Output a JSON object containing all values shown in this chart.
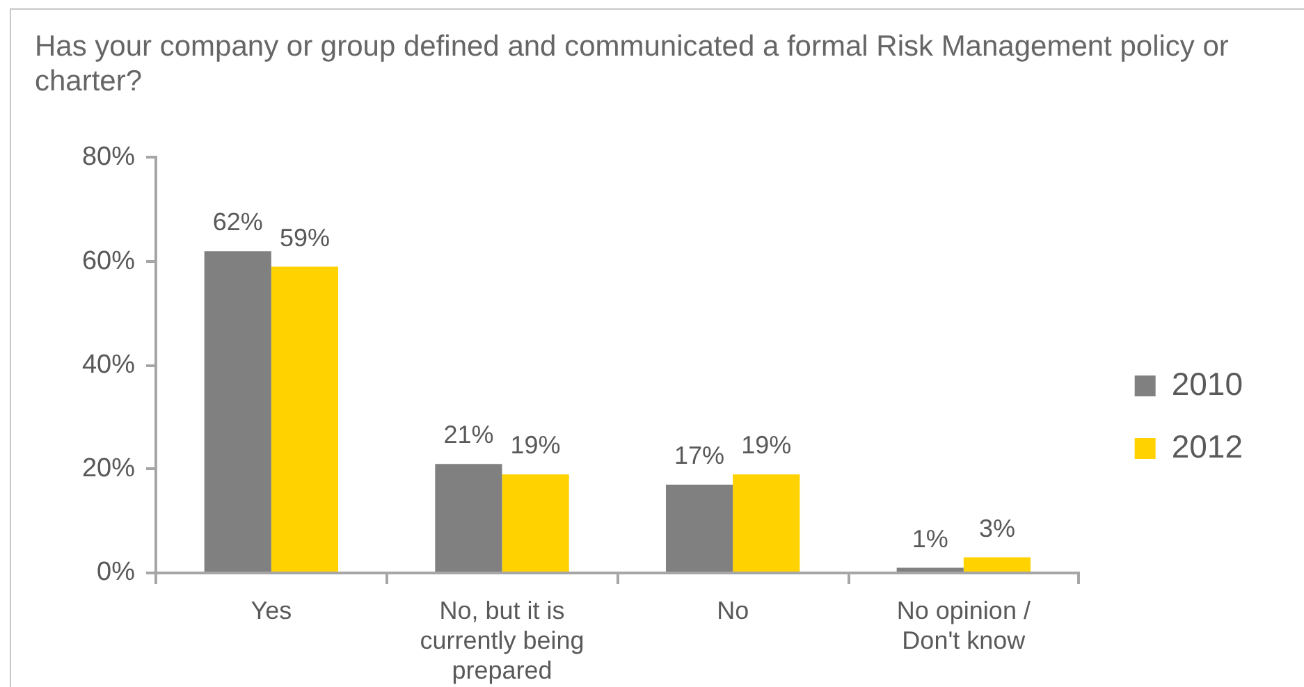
{
  "chart_data": {
    "type": "bar",
    "title": "Has your company or group defined and communicated a formal Risk Management policy or charter?",
    "categories": [
      "Yes",
      "No, but it is currently being prepared",
      "No",
      "No opinion / Don't know"
    ],
    "series": [
      {
        "name": "2010",
        "color": "#808080",
        "values": [
          62,
          21,
          17,
          1
        ],
        "value_labels": [
          "62%",
          "21%",
          "17%",
          "1%"
        ]
      },
      {
        "name": "2012",
        "color": "#ffd200",
        "values": [
          59,
          19,
          19,
          3
        ],
        "value_labels": [
          "59%",
          "19%",
          "19%",
          "3%"
        ]
      }
    ],
    "ylim": [
      0,
      80
    ],
    "yticks": [
      {
        "value": 0,
        "label": "0%"
      },
      {
        "value": 20,
        "label": "20%"
      },
      {
        "value": 40,
        "label": "40%"
      },
      {
        "value": 60,
        "label": "60%"
      },
      {
        "value": 80,
        "label": "80%"
      }
    ],
    "grid": false,
    "legend": "right"
  }
}
